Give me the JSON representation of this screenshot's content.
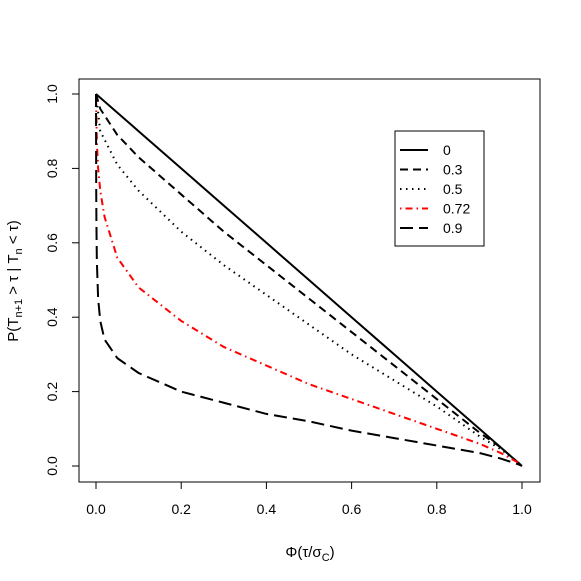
{
  "chart_data": {
    "type": "line",
    "xlabel": "Φ(τ/σ_C)",
    "xlabel_parts": {
      "main": "Φ(τ/σ",
      "sub": "C",
      "end": ")"
    },
    "ylabel": "P(T_{n+1} > τ | T_n < τ)",
    "ylabel_parts": {
      "p1": "P(T",
      "s1": "n+1",
      "p2": " > τ | T",
      "s2": "n",
      "p3": " < τ)"
    },
    "xlim": [
      0,
      1
    ],
    "ylim": [
      0,
      1
    ],
    "x_ticks": [
      "0.0",
      "0.2",
      "0.4",
      "0.6",
      "0.8",
      "1.0"
    ],
    "y_ticks": [
      "0.0",
      "0.2",
      "0.4",
      "0.6",
      "0.8",
      "1.0"
    ],
    "grid": false,
    "legend_position": "top-right",
    "series": [
      {
        "name": "0",
        "color": "#000000",
        "style": "solid",
        "x": [
          0,
          0.01,
          0.05,
          0.1,
          0.2,
          0.3,
          0.4,
          0.5,
          0.6,
          0.7,
          0.8,
          0.9,
          0.95,
          0.99,
          1.0
        ],
        "y": [
          1.0,
          0.99,
          0.95,
          0.9,
          0.8,
          0.7,
          0.6,
          0.5,
          0.4,
          0.3,
          0.2,
          0.1,
          0.05,
          0.01,
          0.0
        ]
      },
      {
        "name": "0.3",
        "color": "#000000",
        "style": "dashed",
        "x": [
          0,
          0.01,
          0.05,
          0.1,
          0.2,
          0.3,
          0.4,
          0.5,
          0.6,
          0.7,
          0.8,
          0.9,
          0.95,
          0.99,
          1.0
        ],
        "y": [
          1.0,
          0.96,
          0.89,
          0.83,
          0.73,
          0.63,
          0.54,
          0.45,
          0.36,
          0.27,
          0.18,
          0.09,
          0.05,
          0.01,
          0.0
        ]
      },
      {
        "name": "0.5",
        "color": "#000000",
        "style": "dotted",
        "x": [
          0,
          0.01,
          0.05,
          0.1,
          0.2,
          0.3,
          0.4,
          0.5,
          0.6,
          0.7,
          0.8,
          0.9,
          0.95,
          0.99,
          1.0
        ],
        "y": [
          1.0,
          0.9,
          0.81,
          0.74,
          0.63,
          0.54,
          0.46,
          0.38,
          0.3,
          0.23,
          0.16,
          0.08,
          0.045,
          0.01,
          0.0
        ]
      },
      {
        "name": "0.72",
        "color": "#ff0000",
        "style": "dashdot",
        "x": [
          0,
          0.002,
          0.005,
          0.01,
          0.02,
          0.05,
          0.1,
          0.2,
          0.3,
          0.4,
          0.5,
          0.6,
          0.7,
          0.8,
          0.9,
          0.95,
          0.99,
          1.0
        ],
        "y": [
          1.0,
          0.87,
          0.8,
          0.74,
          0.67,
          0.56,
          0.48,
          0.39,
          0.32,
          0.27,
          0.22,
          0.18,
          0.14,
          0.1,
          0.06,
          0.035,
          0.01,
          0.0
        ]
      },
      {
        "name": "0.9",
        "color": "#000000",
        "style": "longdash",
        "x": [
          0,
          0.0005,
          0.001,
          0.002,
          0.005,
          0.01,
          0.02,
          0.05,
          0.1,
          0.2,
          0.3,
          0.4,
          0.5,
          0.6,
          0.7,
          0.8,
          0.9,
          0.95,
          0.99,
          1.0
        ],
        "y": [
          1.0,
          0.75,
          0.65,
          0.55,
          0.45,
          0.39,
          0.34,
          0.29,
          0.25,
          0.2,
          0.17,
          0.14,
          0.12,
          0.095,
          0.075,
          0.055,
          0.035,
          0.02,
          0.005,
          0.0
        ]
      }
    ]
  }
}
